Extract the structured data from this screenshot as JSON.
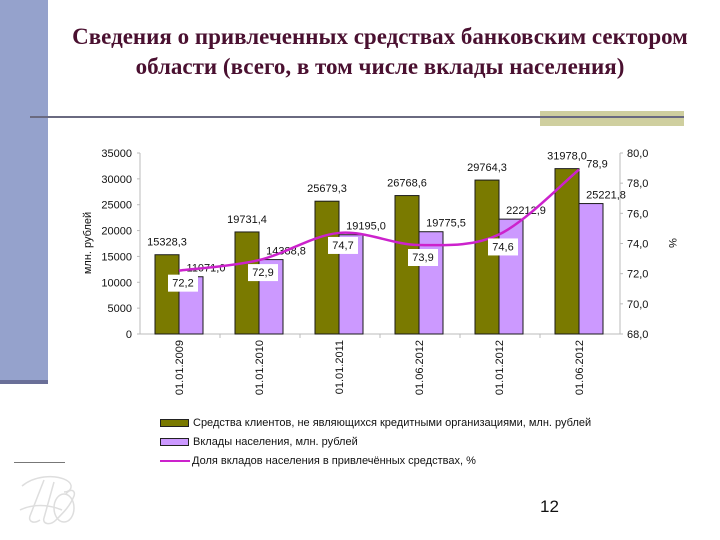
{
  "slide": {
    "title": "Сведения о привлеченных средствах банковским сектором области (всего, в том числе вклады населения)",
    "page_number": "12",
    "colors": {
      "side_bar": "#95a2cc",
      "title_text": "#4a1030",
      "accent_box": "#cfcf9f",
      "rule": "#6a6a80"
    }
  },
  "chart_data": {
    "type": "bar",
    "title": "",
    "categories": [
      "01.01.2009",
      "01.01.2010",
      "01.01.2011",
      "01.06.2012",
      "01.01.2012",
      "01.06.2012"
    ],
    "series": [
      {
        "name": "Средства клиентов, не являющихся кредитными организациями, млн. рублей",
        "type": "bar",
        "axis": "left",
        "color": "#7a7a00",
        "values": [
          15328.3,
          19731.4,
          25679.3,
          26768.6,
          29764.3,
          31978.0
        ],
        "labels": [
          "15328,3",
          "19731,4",
          "25679,3",
          "26768,6",
          "29764,3",
          "31978,0"
        ]
      },
      {
        "name": "Вклады населения, млн. рублей",
        "type": "bar",
        "axis": "left",
        "color": "#cc99ff",
        "values": [
          11071.0,
          14388.8,
          19195.0,
          19775.5,
          22212.9,
          25221.8
        ],
        "labels": [
          "11071,0",
          "14388,8",
          "19195,0",
          "19775,5",
          "22212,9",
          "25221,8"
        ]
      },
      {
        "name": "Доля вкладов населения в привлечённых средствах, %",
        "type": "line",
        "axis": "right",
        "color": "#cc22cc",
        "values": [
          72.2,
          72.9,
          74.7,
          73.9,
          74.6,
          78.9
        ],
        "labels": [
          "72,2",
          "72,9",
          "74,7",
          "73,9",
          "74,6",
          "78,9"
        ]
      }
    ],
    "ylabel": "млн. рублей",
    "y2label": "%",
    "ylim": [
      0,
      35000
    ],
    "y_ticks": [
      "0",
      "5000",
      "10000",
      "15000",
      "20000",
      "25000",
      "30000",
      "35000"
    ],
    "y2lim": [
      68,
      80
    ],
    "y2_ticks": [
      "68,0",
      "70,0",
      "72,0",
      "74,0",
      "76,0",
      "78,0",
      "80,0"
    ],
    "grid": false,
    "legend_position": "bottom"
  },
  "legend": {
    "items": [
      "Средства клиентов, не являющихся кредитными организациями, млн. рублей",
      "Вклады населения, млн. рублей",
      "Доля вкладов населения в привлечённых средствах, %"
    ]
  }
}
